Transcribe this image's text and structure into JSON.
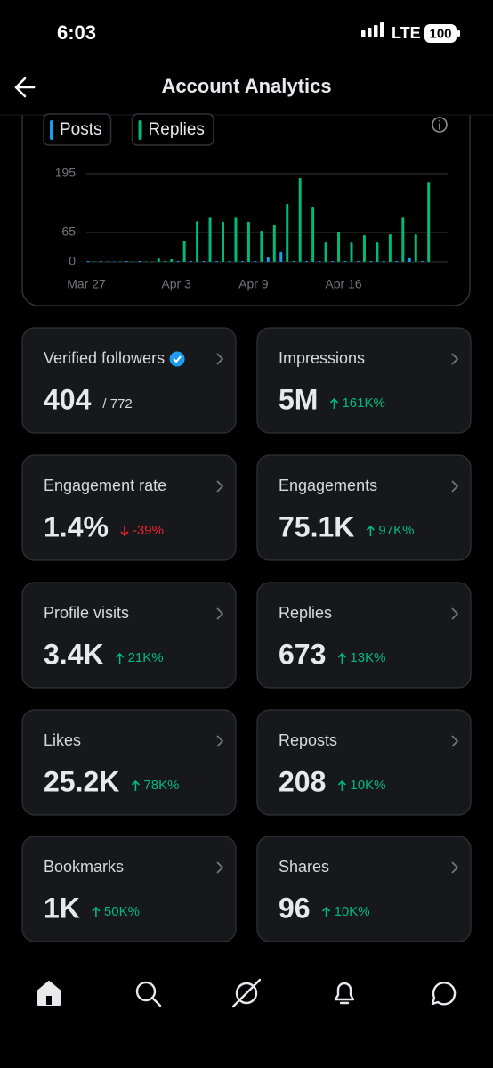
{
  "status_bar": {
    "time": "6:03",
    "network": "LTE",
    "battery": "100"
  },
  "header": {
    "title": "Account Analytics"
  },
  "chart_data": {
    "type": "bar",
    "categories": [
      "Mar 27",
      null,
      null,
      null,
      null,
      null,
      null,
      "Apr 3",
      null,
      null,
      null,
      null,
      null,
      "Apr 9",
      null,
      null,
      null,
      null,
      null,
      null,
      "Apr 16",
      null,
      null,
      null,
      null,
      null,
      null
    ],
    "series": [
      {
        "name": "Posts",
        "color": "#1d9bf0",
        "values": [
          2,
          2,
          1,
          2,
          2,
          1,
          2,
          2,
          2,
          2,
          2,
          2,
          2,
          2,
          10,
          22,
          2,
          2,
          2,
          2,
          2,
          2,
          2,
          2,
          2,
          8,
          2
        ]
      },
      {
        "name": "Replies",
        "color": "#00ba7c",
        "values": [
          1,
          1,
          1,
          1,
          1,
          8,
          6,
          47,
          90,
          98,
          89,
          98,
          89,
          69,
          81,
          128,
          185,
          122,
          43,
          67,
          43,
          59,
          43,
          61,
          98,
          61,
          177
        ]
      }
    ],
    "ylim": [
      0,
      200
    ],
    "yticks": [
      0,
      65,
      195
    ],
    "grid": true
  },
  "cards": [
    {
      "label": "Verified followers",
      "value": "404",
      "total": "/ 772",
      "verified": true
    },
    {
      "label": "Impressions",
      "value": "5M",
      "change": "161K%",
      "trend": "up"
    },
    {
      "label": "Engagement rate",
      "value": "1.4%",
      "change": "-39%",
      "trend": "down"
    },
    {
      "label": "Engagements",
      "value": "75.1K",
      "change": "97K%",
      "trend": "up"
    },
    {
      "label": "Profile visits",
      "value": "3.4K",
      "change": "21K%",
      "trend": "up"
    },
    {
      "label": "Replies",
      "value": "673",
      "change": "13K%",
      "trend": "up"
    },
    {
      "label": "Likes",
      "value": "25.2K",
      "change": "78K%",
      "trend": "up"
    },
    {
      "label": "Reposts",
      "value": "208",
      "change": "10K%",
      "trend": "up"
    },
    {
      "label": "Bookmarks",
      "value": "1K",
      "change": "50K%",
      "trend": "up"
    },
    {
      "label": "Shares",
      "value": "96",
      "change": "10K%",
      "trend": "up"
    }
  ]
}
